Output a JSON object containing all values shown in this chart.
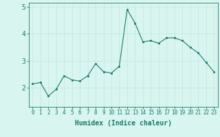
{
  "x": [
    0,
    1,
    2,
    3,
    4,
    5,
    6,
    7,
    8,
    9,
    10,
    11,
    12,
    13,
    14,
    15,
    16,
    17,
    18,
    19,
    20,
    21,
    22,
    23
  ],
  "y": [
    2.15,
    2.2,
    1.7,
    1.95,
    2.45,
    2.3,
    2.25,
    2.45,
    2.9,
    2.6,
    2.55,
    2.8,
    4.9,
    4.4,
    3.7,
    3.75,
    3.65,
    3.85,
    3.85,
    3.75,
    3.5,
    3.3,
    2.95,
    2.6
  ],
  "line_color": "#1a7a6a",
  "marker_color": "#1a7a6a",
  "bg_color": "#d8f5f0",
  "grid_color": "#c8e8e0",
  "xlabel": "Humidex (Indice chaleur)",
  "xlim": [
    -0.5,
    23.5
  ],
  "ylim": [
    1.3,
    5.15
  ],
  "yticks": [
    2,
    3,
    4,
    5
  ],
  "xtick_labels": [
    "0",
    "1",
    "2",
    "3",
    "4",
    "5",
    "6",
    "7",
    "8",
    "9",
    "10",
    "11",
    "12",
    "13",
    "14",
    "15",
    "16",
    "17",
    "18",
    "19",
    "20",
    "21",
    "22",
    "23"
  ],
  "tick_color": "#1a7a6a",
  "label_color": "#1a7a6a",
  "xlabel_fontsize": 7,
  "tick_fontsize": 5.5,
  "ytick_fontsize": 7
}
